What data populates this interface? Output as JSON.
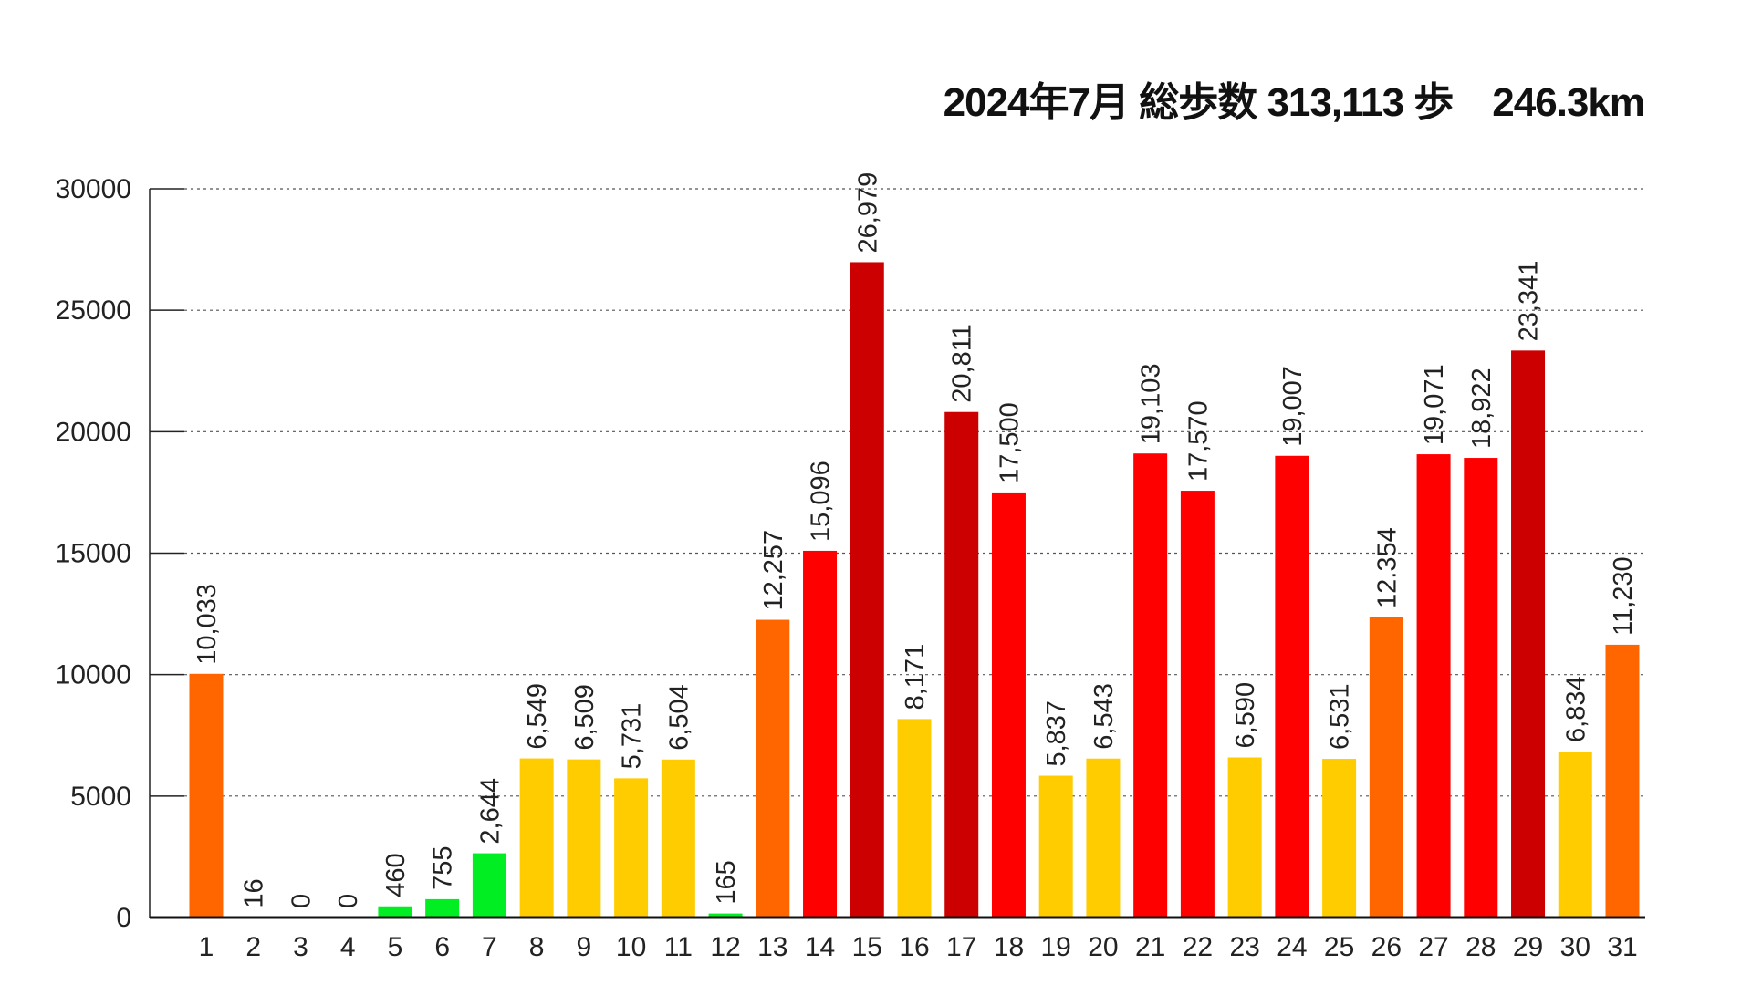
{
  "title": "2024年7月 総歩数 313,113 歩　246.3km",
  "chart_data": {
    "type": "bar",
    "title": "2024年7月 総歩数 313,113 歩　246.3km",
    "xlabel": "",
    "ylabel": "",
    "ylim": [
      0,
      30000
    ],
    "yticks": [
      0,
      5000,
      10000,
      15000,
      20000,
      25000,
      30000
    ],
    "grid": true,
    "categories": [
      "1",
      "2",
      "3",
      "4",
      "5",
      "6",
      "7",
      "8",
      "9",
      "10",
      "11",
      "12",
      "13",
      "14",
      "15",
      "16",
      "17",
      "18",
      "19",
      "20",
      "21",
      "22",
      "23",
      "24",
      "25",
      "26",
      "27",
      "28",
      "29",
      "30",
      "31"
    ],
    "values": [
      10033,
      16,
      0,
      0,
      460,
      755,
      2644,
      6549,
      6509,
      5731,
      6504,
      165,
      12257,
      15096,
      26979,
      8171,
      20811,
      17500,
      5837,
      6543,
      19103,
      17570,
      6590,
      19007,
      6531,
      12354,
      19071,
      18922,
      23341,
      6834,
      11230
    ],
    "labels": [
      "10,033",
      "16",
      "0",
      "0",
      "460",
      "755",
      "2,644",
      "6,549",
      "6,509",
      "5,731",
      "6,504",
      "165",
      "12,257",
      "15,096",
      "26,979",
      "8,171",
      "20,811",
      "17,500",
      "5,837",
      "6,543",
      "19,103",
      "17,570",
      "6,590",
      "19,007",
      "6,531",
      "12.354",
      "19,071",
      "18,922",
      "23,341",
      "6,834",
      "11,230"
    ],
    "color_bands": [
      {
        "min": 0,
        "color": "#00EE22"
      },
      {
        "min": 5000,
        "color": "#FFCC00"
      },
      {
        "min": 10000,
        "color": "#FF6600"
      },
      {
        "min": 15000,
        "color": "#FF0000"
      },
      {
        "min": 20000,
        "color": "#CC0000"
      }
    ]
  }
}
